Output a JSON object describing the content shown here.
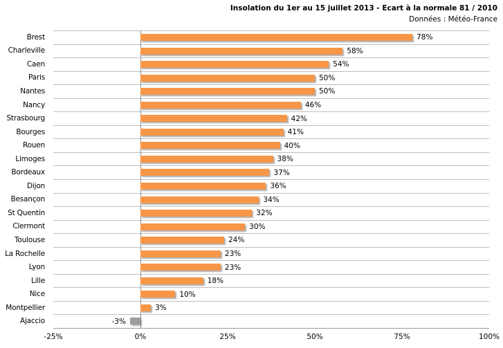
{
  "chart": {
    "title": "Insolation du 1er au 15 juillet 2013 - Ecart à la normale 81 / 2010",
    "subtitle": "Données : Météo-France"
  },
  "chart_data": {
    "type": "bar",
    "orientation": "horizontal",
    "title": "Insolation du 1er au 15 juillet 2013 - Ecart à la normale 81 / 2010",
    "subtitle": "Données : Météo-France",
    "categories": [
      "Brest",
      "Charleville",
      "Caen",
      "Paris",
      "Nantes",
      "Nancy",
      "Strasbourg",
      "Bourges",
      "Rouen",
      "Limoges",
      "Bordeaux",
      "Dijon",
      "Besançon",
      "St Quentin",
      "Clermont",
      "Toulouse",
      "La Rochelle",
      "Lyon",
      "Lille",
      "Nice",
      "Montpellier",
      "Ajaccio"
    ],
    "values": [
      78,
      58,
      54,
      50,
      50,
      46,
      42,
      41,
      40,
      38,
      37,
      36,
      34,
      32,
      30,
      24,
      23,
      23,
      18,
      10,
      3,
      -3
    ],
    "value_labels": [
      "78%",
      "58%",
      "54%",
      "50%",
      "50%",
      "46%",
      "42%",
      "41%",
      "40%",
      "38%",
      "37%",
      "36%",
      "34%",
      "32%",
      "30%",
      "24%",
      "23%",
      "23%",
      "18%",
      "10%",
      "3%",
      "-3%"
    ],
    "xlim": [
      -25,
      100
    ],
    "x_tick_values": [
      -25,
      0,
      25,
      50,
      75,
      100
    ],
    "x_ticks": [
      "-25%",
      "0%",
      "25%",
      "50%",
      "75%",
      "100%"
    ],
    "bar_color": "#F79646",
    "negative_bar_color": "#9C9C9C",
    "gridline_color": "#BFBFBF",
    "zero_line_color": "#8C8C8C",
    "legend": "none",
    "grid": "category separators only"
  }
}
